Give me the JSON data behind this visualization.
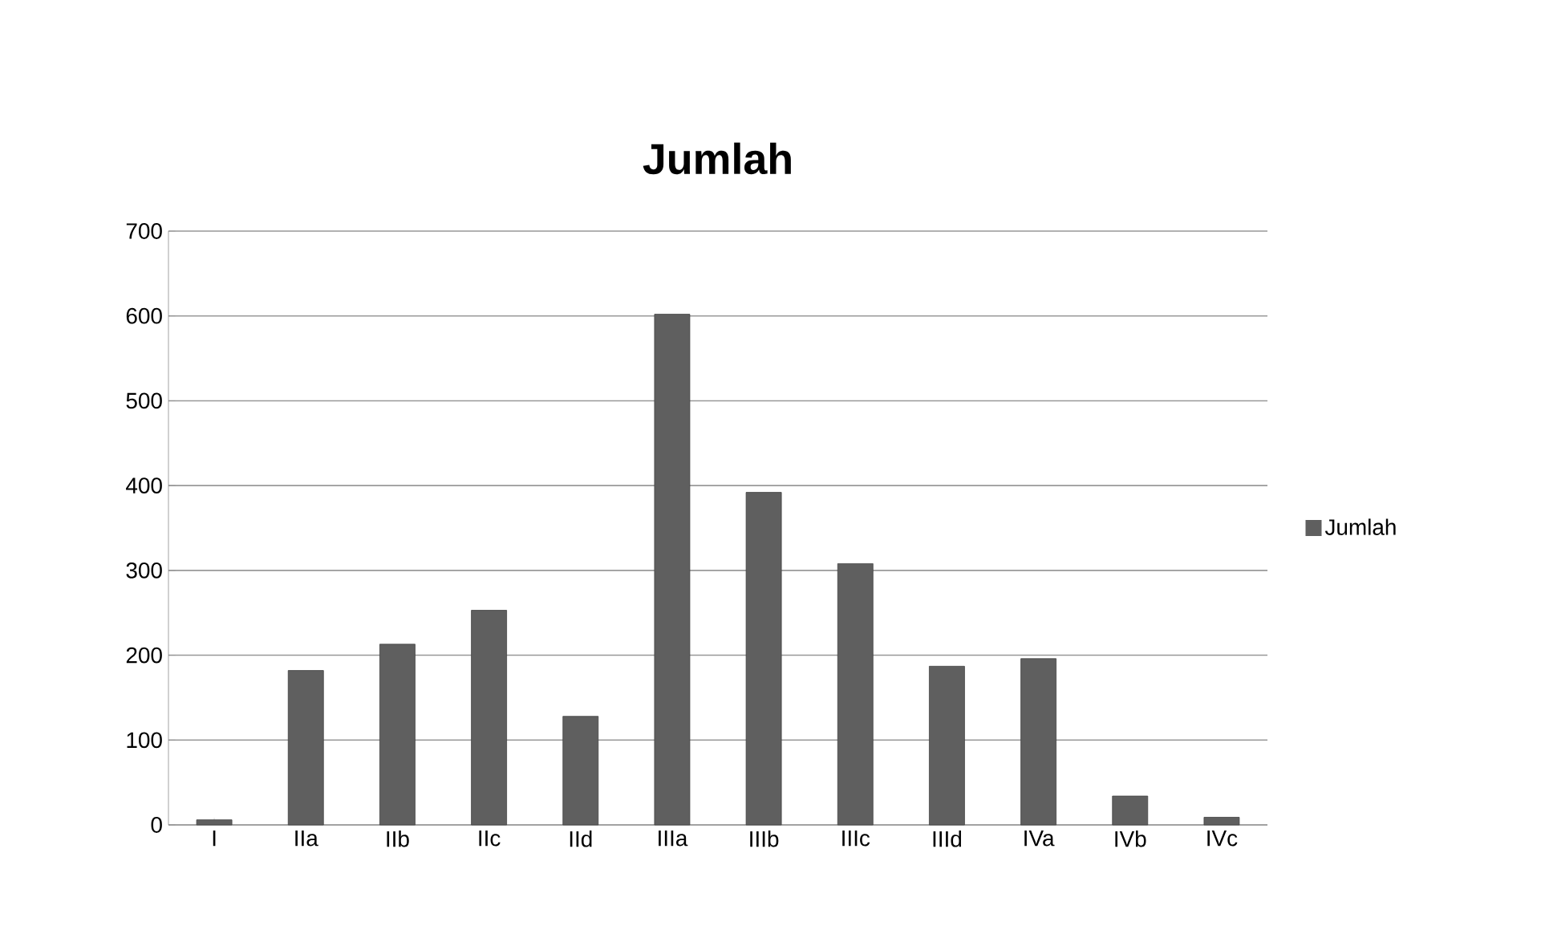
{
  "chart_data": {
    "type": "bar",
    "title": "Jumlah",
    "categories": [
      "I",
      "IIa",
      "IIb",
      "IIc",
      "IId",
      "IIIa",
      "IIIb",
      "IIIc",
      "IIId",
      "IVa",
      "IVb",
      "IVc"
    ],
    "series": [
      {
        "name": "Jumlah",
        "color": "#5f5f5f",
        "values": [
          6,
          182,
          213,
          253,
          128,
          602,
          392,
          308,
          187,
          196,
          34,
          9
        ]
      }
    ],
    "ylim": [
      0,
      700
    ],
    "yticks": [
      0,
      100,
      200,
      300,
      400,
      500,
      600,
      700
    ],
    "grid": "y",
    "legend": "right"
  }
}
